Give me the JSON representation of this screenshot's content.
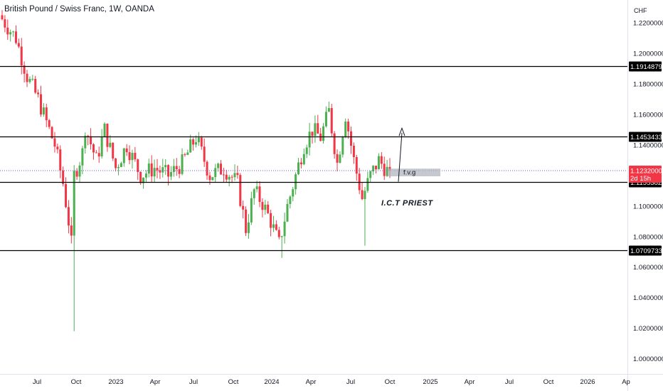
{
  "header": {
    "symbol_title": "British Pound / Swiss Franc, 1W, OANDA",
    "currency": "CHF"
  },
  "colors": {
    "up": "#26a69a",
    "down": "#ef5350",
    "up_body": "#4caf50",
    "down_body": "#f23645",
    "level_line": "#000000",
    "current_price_line": "#6a5acd",
    "fvg_box": "#b2b5be"
  },
  "chart_data": {
    "type": "candlestick",
    "ylim": [
      0.99,
      1.235
    ],
    "y_ticks": [
      "1.22000000",
      "1.20000000",
      "1.18000000",
      "1.16000000",
      "1.14000000",
      "1.10000000",
      "1.08000000",
      "1.06000000",
      "1.04000000",
      "1.02000000",
      "1.00000000"
    ],
    "y_tick_values": [
      1.22,
      1.2,
      1.18,
      1.16,
      1.14,
      1.1,
      1.08,
      1.06,
      1.04,
      1.02,
      1.0
    ],
    "x_ticks": [
      "Jul",
      "Oct",
      "2023",
      "Apr",
      "Jul",
      "Oct",
      "2024",
      "Apr",
      "Jul",
      "Oct",
      "2025",
      "Apr",
      "Jul",
      "Oct",
      "2026",
      "Ap"
    ],
    "horizontal_levels": [
      {
        "value": 1.19148794,
        "label": "1.19148794"
      },
      {
        "value": 1.14534334,
        "label": "1.14534334"
      },
      {
        "value": 1.11553827,
        "label": "1.11553827"
      },
      {
        "value": 1.07097335,
        "label": "1.07097335"
      }
    ],
    "current_price": {
      "value": 1.1232,
      "label": "1.12320000",
      "countdown": "2d 15h"
    },
    "fvg_label": "f.v.g",
    "annotation": "I.C.T PRIEST",
    "anchor": [
      {
        "week": 0,
        "price": 1.225
      },
      {
        "week": 6,
        "price": 1.21
      },
      {
        "week": 10,
        "price": 1.185
      },
      {
        "week": 14,
        "price": 1.17
      },
      {
        "week": 17,
        "price": 1.155
      },
      {
        "week": 20,
        "price": 1.14
      },
      {
        "week": 23,
        "price": 1.115
      },
      {
        "week": 25,
        "price": 1.09
      },
      {
        "week": 26,
        "price": 1.075
      },
      {
        "week": 27,
        "price": 1.12
      },
      {
        "week": 30,
        "price": 1.135
      },
      {
        "week": 31,
        "price": 1.152
      },
      {
        "week": 35,
        "price": 1.13
      },
      {
        "week": 38,
        "price": 1.15
      },
      {
        "week": 42,
        "price": 1.125
      },
      {
        "week": 46,
        "price": 1.14
      },
      {
        "week": 51,
        "price": 1.12
      },
      {
        "week": 56,
        "price": 1.125
      },
      {
        "week": 61,
        "price": 1.12
      },
      {
        "week": 66,
        "price": 1.128
      },
      {
        "week": 71,
        "price": 1.145
      },
      {
        "week": 76,
        "price": 1.12
      },
      {
        "week": 81,
        "price": 1.125
      },
      {
        "week": 86,
        "price": 1.115
      },
      {
        "week": 89,
        "price": 1.085
      },
      {
        "week": 92,
        "price": 1.11
      },
      {
        "week": 95,
        "price": 1.102
      },
      {
        "week": 98,
        "price": 1.09
      },
      {
        "week": 101,
        "price": 1.075
      },
      {
        "week": 104,
        "price": 1.1
      },
      {
        "week": 107,
        "price": 1.12
      },
      {
        "week": 110,
        "price": 1.14
      },
      {
        "week": 113,
        "price": 1.15
      },
      {
        "week": 116,
        "price": 1.145
      },
      {
        "week": 119,
        "price": 1.162
      },
      {
        "week": 122,
        "price": 1.128
      },
      {
        "week": 125,
        "price": 1.16
      },
      {
        "week": 128,
        "price": 1.13
      },
      {
        "week": 131,
        "price": 1.105
      },
      {
        "week": 134,
        "price": 1.12
      },
      {
        "week": 137,
        "price": 1.13
      },
      {
        "week": 140,
        "price": 1.1232
      }
    ],
    "candles_count": 141
  }
}
